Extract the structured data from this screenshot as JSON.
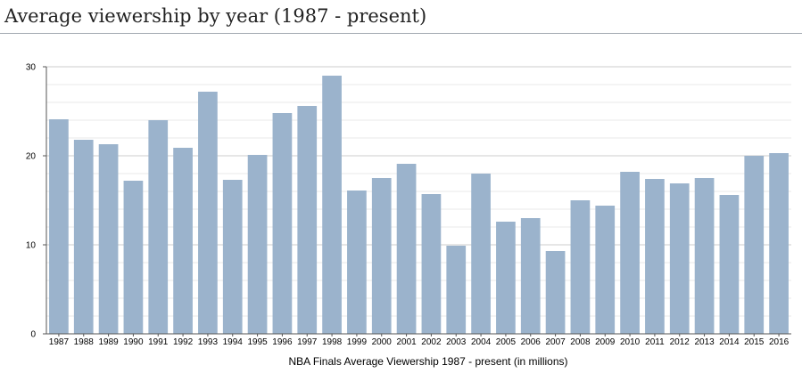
{
  "page": {
    "title": "Average viewership by year (1987 - present)"
  },
  "chart_data": {
    "type": "bar",
    "title": "",
    "xlabel": "NBA Finals Average Viewership 1987 - present (in millions)",
    "ylabel": "",
    "ylim": [
      0,
      30
    ],
    "yticks": [
      0,
      10,
      20,
      30
    ],
    "grid": true,
    "bar_color": "#9bb3cc",
    "categories": [
      "1987",
      "1988",
      "1989",
      "1990",
      "1991",
      "1992",
      "1993",
      "1994",
      "1995",
      "1996",
      "1997",
      "1998",
      "1999",
      "2000",
      "2001",
      "2002",
      "2003",
      "2004",
      "2005",
      "2006",
      "2007",
      "2008",
      "2009",
      "2010",
      "2011",
      "2012",
      "2013",
      "2014",
      "2015",
      "2016"
    ],
    "values": [
      24.1,
      21.8,
      21.3,
      17.2,
      24.0,
      20.9,
      27.2,
      17.3,
      20.1,
      24.8,
      25.6,
      29.0,
      16.1,
      17.5,
      19.1,
      15.7,
      9.9,
      18.0,
      12.6,
      13.0,
      9.3,
      15.0,
      14.4,
      18.2,
      17.4,
      16.9,
      17.5,
      15.6,
      20.0,
      20.3
    ]
  }
}
